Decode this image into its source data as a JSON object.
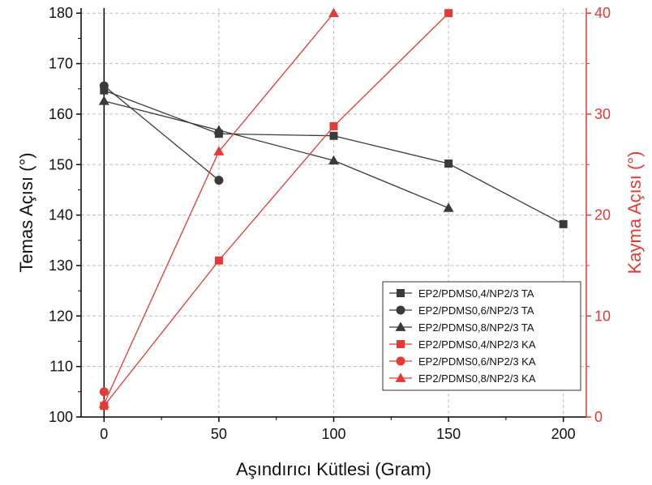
{
  "colors": {
    "left_series": "#3a3a3a",
    "right_series": "#e53935",
    "right_axis": "#e53935",
    "grid": "#bdbdbd",
    "axis": "#000000"
  },
  "chart_data": {
    "type": "line",
    "title": "",
    "xlabel": "Aşındırıcı Kütlesi (Gram)",
    "ylabel_left": "Temas Açısı (°)",
    "ylabel_right": "Kayma Açısı (°)",
    "xlim": [
      -10,
      210
    ],
    "ylim_left": [
      100,
      181
    ],
    "ylim_right": [
      0,
      40.5
    ],
    "x_ticks": [
      0,
      50,
      100,
      150,
      200
    ],
    "y_left_ticks": [
      100,
      110,
      120,
      130,
      140,
      150,
      160,
      170,
      180
    ],
    "y_right_ticks": [
      0,
      10,
      20,
      30,
      40
    ],
    "grid": true,
    "legend_position": "bottom-right",
    "series": [
      {
        "name": "EP2/PDMS0,4/NP2/3 TA",
        "axis": "left",
        "marker": "square",
        "color": "#3a3a3a",
        "x": [
          0,
          50,
          100,
          150,
          200
        ],
        "y": [
          164.7,
          156.1,
          155.7,
          150.2,
          138.2
        ]
      },
      {
        "name": "EP2/PDMS0,6/NP2/3 TA",
        "axis": "left",
        "marker": "circle",
        "color": "#3a3a3a",
        "x": [
          0,
          50
        ],
        "y": [
          165.6,
          146.9
        ]
      },
      {
        "name": "EP2/PDMS0,8/NP2/3 TA",
        "axis": "left",
        "marker": "triangle",
        "color": "#3a3a3a",
        "x": [
          0,
          50,
          100,
          150
        ],
        "y": [
          162.6,
          156.8,
          150.8,
          141.4
        ]
      },
      {
        "name": "EP2/PDMS0,4/NP2/3 KA",
        "axis": "right",
        "marker": "square",
        "color": "#e53935",
        "x": [
          0,
          50,
          100,
          150
        ],
        "y": [
          1.1,
          15.5,
          28.8,
          40.0
        ]
      },
      {
        "name": "EP2/PDMS0,6/NP2/3 KA",
        "axis": "right",
        "marker": "circle",
        "color": "#e53935",
        "x": [
          0
        ],
        "y": [
          2.5
        ]
      },
      {
        "name": "EP2/PDMS0,8/NP2/3 KA",
        "axis": "right",
        "marker": "triangle",
        "color": "#e53935",
        "x": [
          0,
          50,
          100
        ],
        "y": [
          1.3,
          26.3,
          40.0
        ]
      }
    ]
  }
}
